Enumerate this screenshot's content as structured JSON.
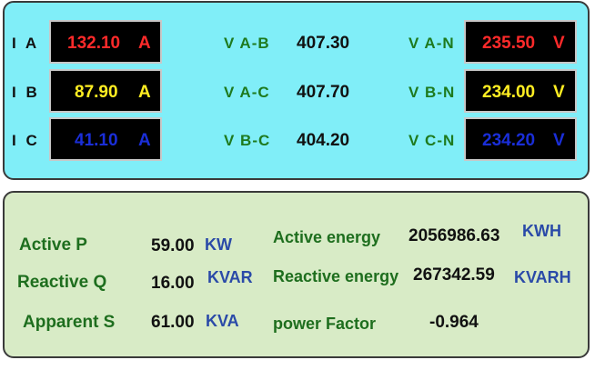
{
  "currents": [
    {
      "label": "I A",
      "value": "132.10",
      "unit": "A",
      "color": "#ff2a2a"
    },
    {
      "label": "I B",
      "value": "87.90",
      "unit": "A",
      "color": "#ffee22"
    },
    {
      "label": "I C",
      "value": "41.10",
      "unit": "A",
      "color": "#1a2ed8"
    }
  ],
  "line_voltages": [
    {
      "label": "V A-B",
      "value": "407.30"
    },
    {
      "label": "V A-C",
      "value": "407.70"
    },
    {
      "label": "V B-C",
      "value": "404.20"
    }
  ],
  "phase_voltages": [
    {
      "label": "V A-N",
      "value": "235.50",
      "unit": "V",
      "color": "#ff2a2a"
    },
    {
      "label": "V B-N",
      "value": "234.00",
      "unit": "V",
      "color": "#ffee22"
    },
    {
      "label": "V C-N",
      "value": "234.20",
      "unit": "V",
      "color": "#1a2ed8"
    }
  ],
  "power": [
    {
      "label": "Active  P",
      "value": "59.00",
      "unit": "KW"
    },
    {
      "label": "Reactive Q",
      "value": "16.00",
      "unit": "KVAR"
    },
    {
      "label": "Apparent  S",
      "value": "61.00",
      "unit": "KVA"
    }
  ],
  "energy": [
    {
      "label": "Active energy",
      "value": "2056986.63",
      "unit": "KWH"
    },
    {
      "label": "Reactive energy",
      "value": "267342.59",
      "unit": "KVARH"
    },
    {
      "label": "power Factor",
      "value": "-0.964",
      "unit": ""
    }
  ],
  "colors": {
    "top_panel": "#80eef8",
    "bottom_panel": "#d8ebc6",
    "label_green": "#1e7a1e",
    "unit_blue": "#2a4aa8"
  }
}
